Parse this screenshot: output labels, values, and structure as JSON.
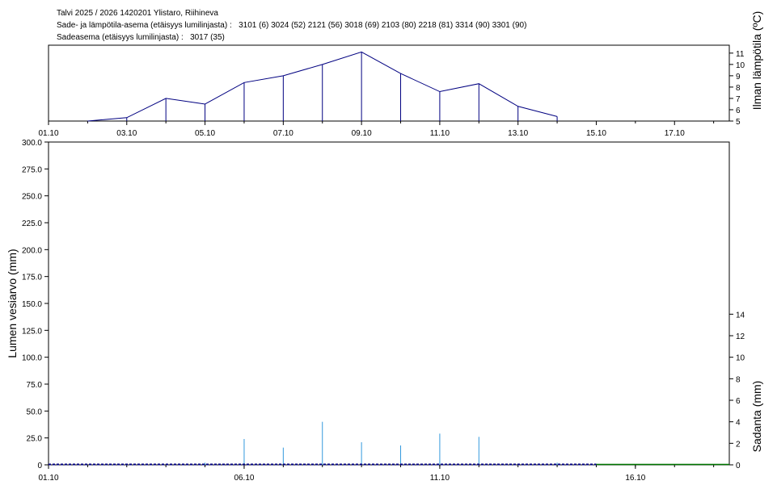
{
  "header": {
    "line1": "Talvi 2025 / 2026 1420201 Ylistaro, Riihineva",
    "line2": "Sade- ja lämpötila-asema (etäisyys lumilinjasta) :   3101 (6) 3024 (52) 2121 (56) 3018 (69) 2103 (80) 2218 (81) 3314 (90) 3301 (90)",
    "line3": "Sadeasema (etäisyys lumilinjasta) :   3017 (35)"
  },
  "chart_data": [
    {
      "type": "line",
      "ylabel": "Ilman lämpötila (ºC)",
      "x_ticks": [
        "01.10",
        "03.10",
        "05.10",
        "07.10",
        "09.10",
        "11.10",
        "13.10",
        "15.10",
        "17.10"
      ],
      "y_ticks": [
        "5",
        "6",
        "7",
        "8",
        "9",
        "10",
        "11"
      ],
      "ylim": [
        5,
        11.7
      ],
      "xlim_days": [
        1,
        18.4
      ],
      "series": [
        {
          "x": [
            2,
            3,
            4,
            5,
            6,
            7,
            8,
            9,
            10,
            11,
            12,
            13,
            14
          ],
          "values": [
            5.0,
            5.3,
            7.0,
            6.5,
            8.4,
            9.0,
            10.0,
            11.1,
            9.2,
            7.6,
            8.3,
            6.3,
            5.4
          ]
        }
      ],
      "color": "#000080"
    },
    {
      "type": "bar",
      "ylabel": "Lumen vesiarvo (mm)",
      "y2label": "Sadanta (mm)",
      "x_ticks": [
        "01.10",
        "06.10",
        "11.10",
        "16.10"
      ],
      "y_ticks": [
        "0",
        "25.0",
        "50.0",
        "75.0",
        "100.0",
        "125.0",
        "150.0",
        "175.0",
        "200.0",
        "225.0",
        "250.0",
        "275.0",
        "300.0"
      ],
      "y2_ticks": [
        "0",
        "2",
        "4",
        "6",
        "8",
        "10",
        "12",
        "14"
      ],
      "ylim": [
        0,
        300
      ],
      "y2lim": [
        0,
        30
      ],
      "xlim_days": [
        1,
        18.4
      ],
      "precipitation": {
        "x": [
          5,
          6,
          7,
          8,
          9,
          10,
          11,
          12,
          14
        ],
        "values": [
          0.2,
          2.4,
          1.6,
          4.0,
          2.1,
          1.8,
          2.9,
          2.6,
          0.2
        ],
        "color": "#3399dd"
      },
      "snow_water": {
        "x_start": 1,
        "x_end": 15,
        "value": 0,
        "color": "#000080"
      },
      "ground_line": {
        "x_start": 15,
        "x_end": 18.4,
        "color": "#007700"
      }
    }
  ]
}
